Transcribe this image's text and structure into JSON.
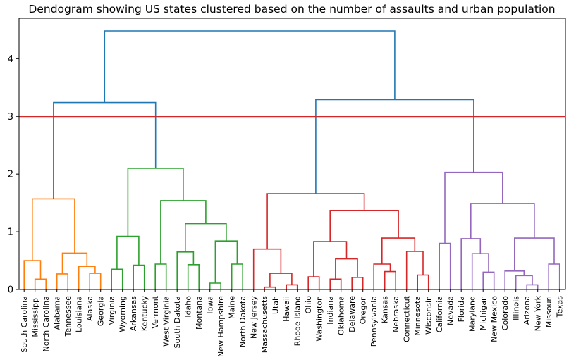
{
  "chart_data": {
    "type": "dendrogram",
    "title": "Dendogram showing US states clustered based on the number of assaults and urban population",
    "xlabel": "",
    "ylabel": "",
    "ylim": [
      0,
      4.7
    ],
    "yticks": [
      0,
      1,
      2,
      3,
      4
    ],
    "ytick_labels": [
      "0",
      "1",
      "2",
      "3",
      "4"
    ],
    "threshold": {
      "value": 3.0,
      "color": "#d62728"
    },
    "above_threshold_color": "#1f77b4",
    "leaves": [
      "South Carolina",
      "Mississippi",
      "North Carolina",
      "Alabama",
      "Tennessee",
      "Louisiana",
      "Alaska",
      "Georgia",
      "Virginia",
      "Wyoming",
      "Arkansas",
      "Kentucky",
      "Vermont",
      "West Virginia",
      "South Dakota",
      "Idaho",
      "Montana",
      "Iowa",
      "New Hampshire",
      "Maine",
      "North Dakota",
      "New Jersey",
      "Massachusetts",
      "Utah",
      "Hawaii",
      "Rhode Island",
      "Ohio",
      "Washington",
      "Indiana",
      "Oklahoma",
      "Delaware",
      "Oregon",
      "Pennsylvania",
      "Kansas",
      "Nebraska",
      "Connecticut",
      "Minnesota",
      "Wisconsin",
      "California",
      "Nevada",
      "Florida",
      "Maryland",
      "Michigan",
      "New Mexico",
      "Colorado",
      "Illinois",
      "Arizona",
      "New York",
      "Missouri",
      "Texas"
    ],
    "clusters": [
      {
        "name": "C1",
        "color": "#ff7f0e",
        "leaf_range": [
          0,
          7
        ]
      },
      {
        "name": "C2",
        "color": "#2ca02c",
        "leaf_range": [
          8,
          20
        ]
      },
      {
        "name": "C3",
        "color": "#d62728",
        "leaf_range": [
          21,
          37
        ]
      },
      {
        "name": "C4",
        "color": "#9467bd",
        "leaf_range": [
          38,
          49
        ]
      }
    ],
    "merges": [
      {
        "id": "a1",
        "left": 1,
        "right": 2,
        "height": 0.18,
        "color": "#ff7f0e"
      },
      {
        "id": "a2",
        "left": 0,
        "right": "a1",
        "height": 0.5,
        "color": "#ff7f0e"
      },
      {
        "id": "a3",
        "left": 3,
        "right": 4,
        "height": 0.27,
        "color": "#ff7f0e"
      },
      {
        "id": "a4",
        "left": 6,
        "right": 7,
        "height": 0.28,
        "color": "#ff7f0e"
      },
      {
        "id": "a5",
        "left": 5,
        "right": "a4",
        "height": 0.4,
        "color": "#ff7f0e"
      },
      {
        "id": "a6",
        "left": "a3",
        "right": "a5",
        "height": 0.63,
        "color": "#ff7f0e"
      },
      {
        "id": "a7",
        "left": "a2",
        "right": "a6",
        "height": 1.57,
        "color": "#ff7f0e"
      },
      {
        "id": "b1",
        "left": 8,
        "right": 9,
        "height": 0.35,
        "color": "#2ca02c"
      },
      {
        "id": "b2",
        "left": 10,
        "right": 11,
        "height": 0.42,
        "color": "#2ca02c"
      },
      {
        "id": "b3",
        "left": "b1",
        "right": "b2",
        "height": 0.92,
        "color": "#2ca02c"
      },
      {
        "id": "b4",
        "left": 12,
        "right": 13,
        "height": 0.44,
        "color": "#2ca02c"
      },
      {
        "id": "b5",
        "left": 15,
        "right": 16,
        "height": 0.43,
        "color": "#2ca02c"
      },
      {
        "id": "b6",
        "left": 14,
        "right": "b5",
        "height": 0.65,
        "color": "#2ca02c"
      },
      {
        "id": "b7",
        "left": 17,
        "right": 18,
        "height": 0.11,
        "color": "#2ca02c"
      },
      {
        "id": "b8",
        "left": 19,
        "right": 20,
        "height": 0.44,
        "color": "#2ca02c"
      },
      {
        "id": "b9",
        "left": "b7",
        "right": "b8",
        "height": 0.84,
        "color": "#2ca02c"
      },
      {
        "id": "b10",
        "left": "b6",
        "right": "b9",
        "height": 1.14,
        "color": "#2ca02c"
      },
      {
        "id": "b11",
        "left": "b4",
        "right": "b10",
        "height": 1.54,
        "color": "#2ca02c"
      },
      {
        "id": "b12",
        "left": "b3",
        "right": "b11",
        "height": 2.1,
        "color": "#2ca02c"
      },
      {
        "id": "c1",
        "left": 22,
        "right": 23,
        "height": 0.04,
        "color": "#d62728"
      },
      {
        "id": "c2",
        "left": 24,
        "right": 25,
        "height": 0.08,
        "color": "#d62728"
      },
      {
        "id": "c3",
        "left": "c1",
        "right": "c2",
        "height": 0.28,
        "color": "#d62728"
      },
      {
        "id": "c4",
        "left": 21,
        "right": "c3",
        "height": 0.7,
        "color": "#d62728"
      },
      {
        "id": "c5",
        "left": 26,
        "right": 27,
        "height": 0.22,
        "color": "#d62728"
      },
      {
        "id": "c6",
        "left": 28,
        "right": 29,
        "height": 0.18,
        "color": "#d62728"
      },
      {
        "id": "c7",
        "left": 30,
        "right": 31,
        "height": 0.21,
        "color": "#d62728"
      },
      {
        "id": "c8",
        "left": "c6",
        "right": "c7",
        "height": 0.53,
        "color": "#d62728"
      },
      {
        "id": "c9",
        "left": "c5",
        "right": "c8",
        "height": 0.83,
        "color": "#d62728"
      },
      {
        "id": "c10",
        "left": 33,
        "right": 34,
        "height": 0.31,
        "color": "#d62728"
      },
      {
        "id": "c11",
        "left": 32,
        "right": "c10",
        "height": 0.44,
        "color": "#d62728"
      },
      {
        "id": "c12",
        "left": 36,
        "right": 37,
        "height": 0.25,
        "color": "#d62728"
      },
      {
        "id": "c13",
        "left": 35,
        "right": "c12",
        "height": 0.66,
        "color": "#d62728"
      },
      {
        "id": "c14",
        "left": "c11",
        "right": "c13",
        "height": 0.89,
        "color": "#d62728"
      },
      {
        "id": "c15",
        "left": "c9",
        "right": "c14",
        "height": 1.37,
        "color": "#d62728"
      },
      {
        "id": "c16",
        "left": "c4",
        "right": "c15",
        "height": 1.66,
        "color": "#d62728"
      },
      {
        "id": "d1",
        "left": 38,
        "right": 39,
        "height": 0.8,
        "color": "#9467bd"
      },
      {
        "id": "d2",
        "left": 42,
        "right": 43,
        "height": 0.3,
        "color": "#9467bd"
      },
      {
        "id": "d3",
        "left": 41,
        "right": "d2",
        "height": 0.62,
        "color": "#9467bd"
      },
      {
        "id": "d4",
        "left": 40,
        "right": "d3",
        "height": 0.88,
        "color": "#9467bd"
      },
      {
        "id": "d5",
        "left": 46,
        "right": 47,
        "height": 0.08,
        "color": "#9467bd"
      },
      {
        "id": "d6",
        "left": 45,
        "right": "d5",
        "height": 0.24,
        "color": "#9467bd"
      },
      {
        "id": "d7",
        "left": 44,
        "right": "d6",
        "height": 0.32,
        "color": "#9467bd"
      },
      {
        "id": "d8",
        "left": 48,
        "right": 49,
        "height": 0.44,
        "color": "#9467bd"
      },
      {
        "id": "d9",
        "left": "d7",
        "right": "d8",
        "height": 0.89,
        "color": "#9467bd"
      },
      {
        "id": "d10",
        "left": "d4",
        "right": "d9",
        "height": 1.49,
        "color": "#9467bd"
      },
      {
        "id": "d11",
        "left": "d1",
        "right": "d10",
        "height": 2.03,
        "color": "#9467bd"
      },
      {
        "id": "e1",
        "left": "a7",
        "right": "b12",
        "height": 3.24,
        "color": "#1f77b4"
      },
      {
        "id": "e2",
        "left": "c16",
        "right": "d11",
        "height": 3.29,
        "color": "#1f77b4"
      },
      {
        "id": "e3",
        "left": "e1",
        "right": "e2",
        "height": 4.48,
        "color": "#1f77b4"
      }
    ]
  }
}
